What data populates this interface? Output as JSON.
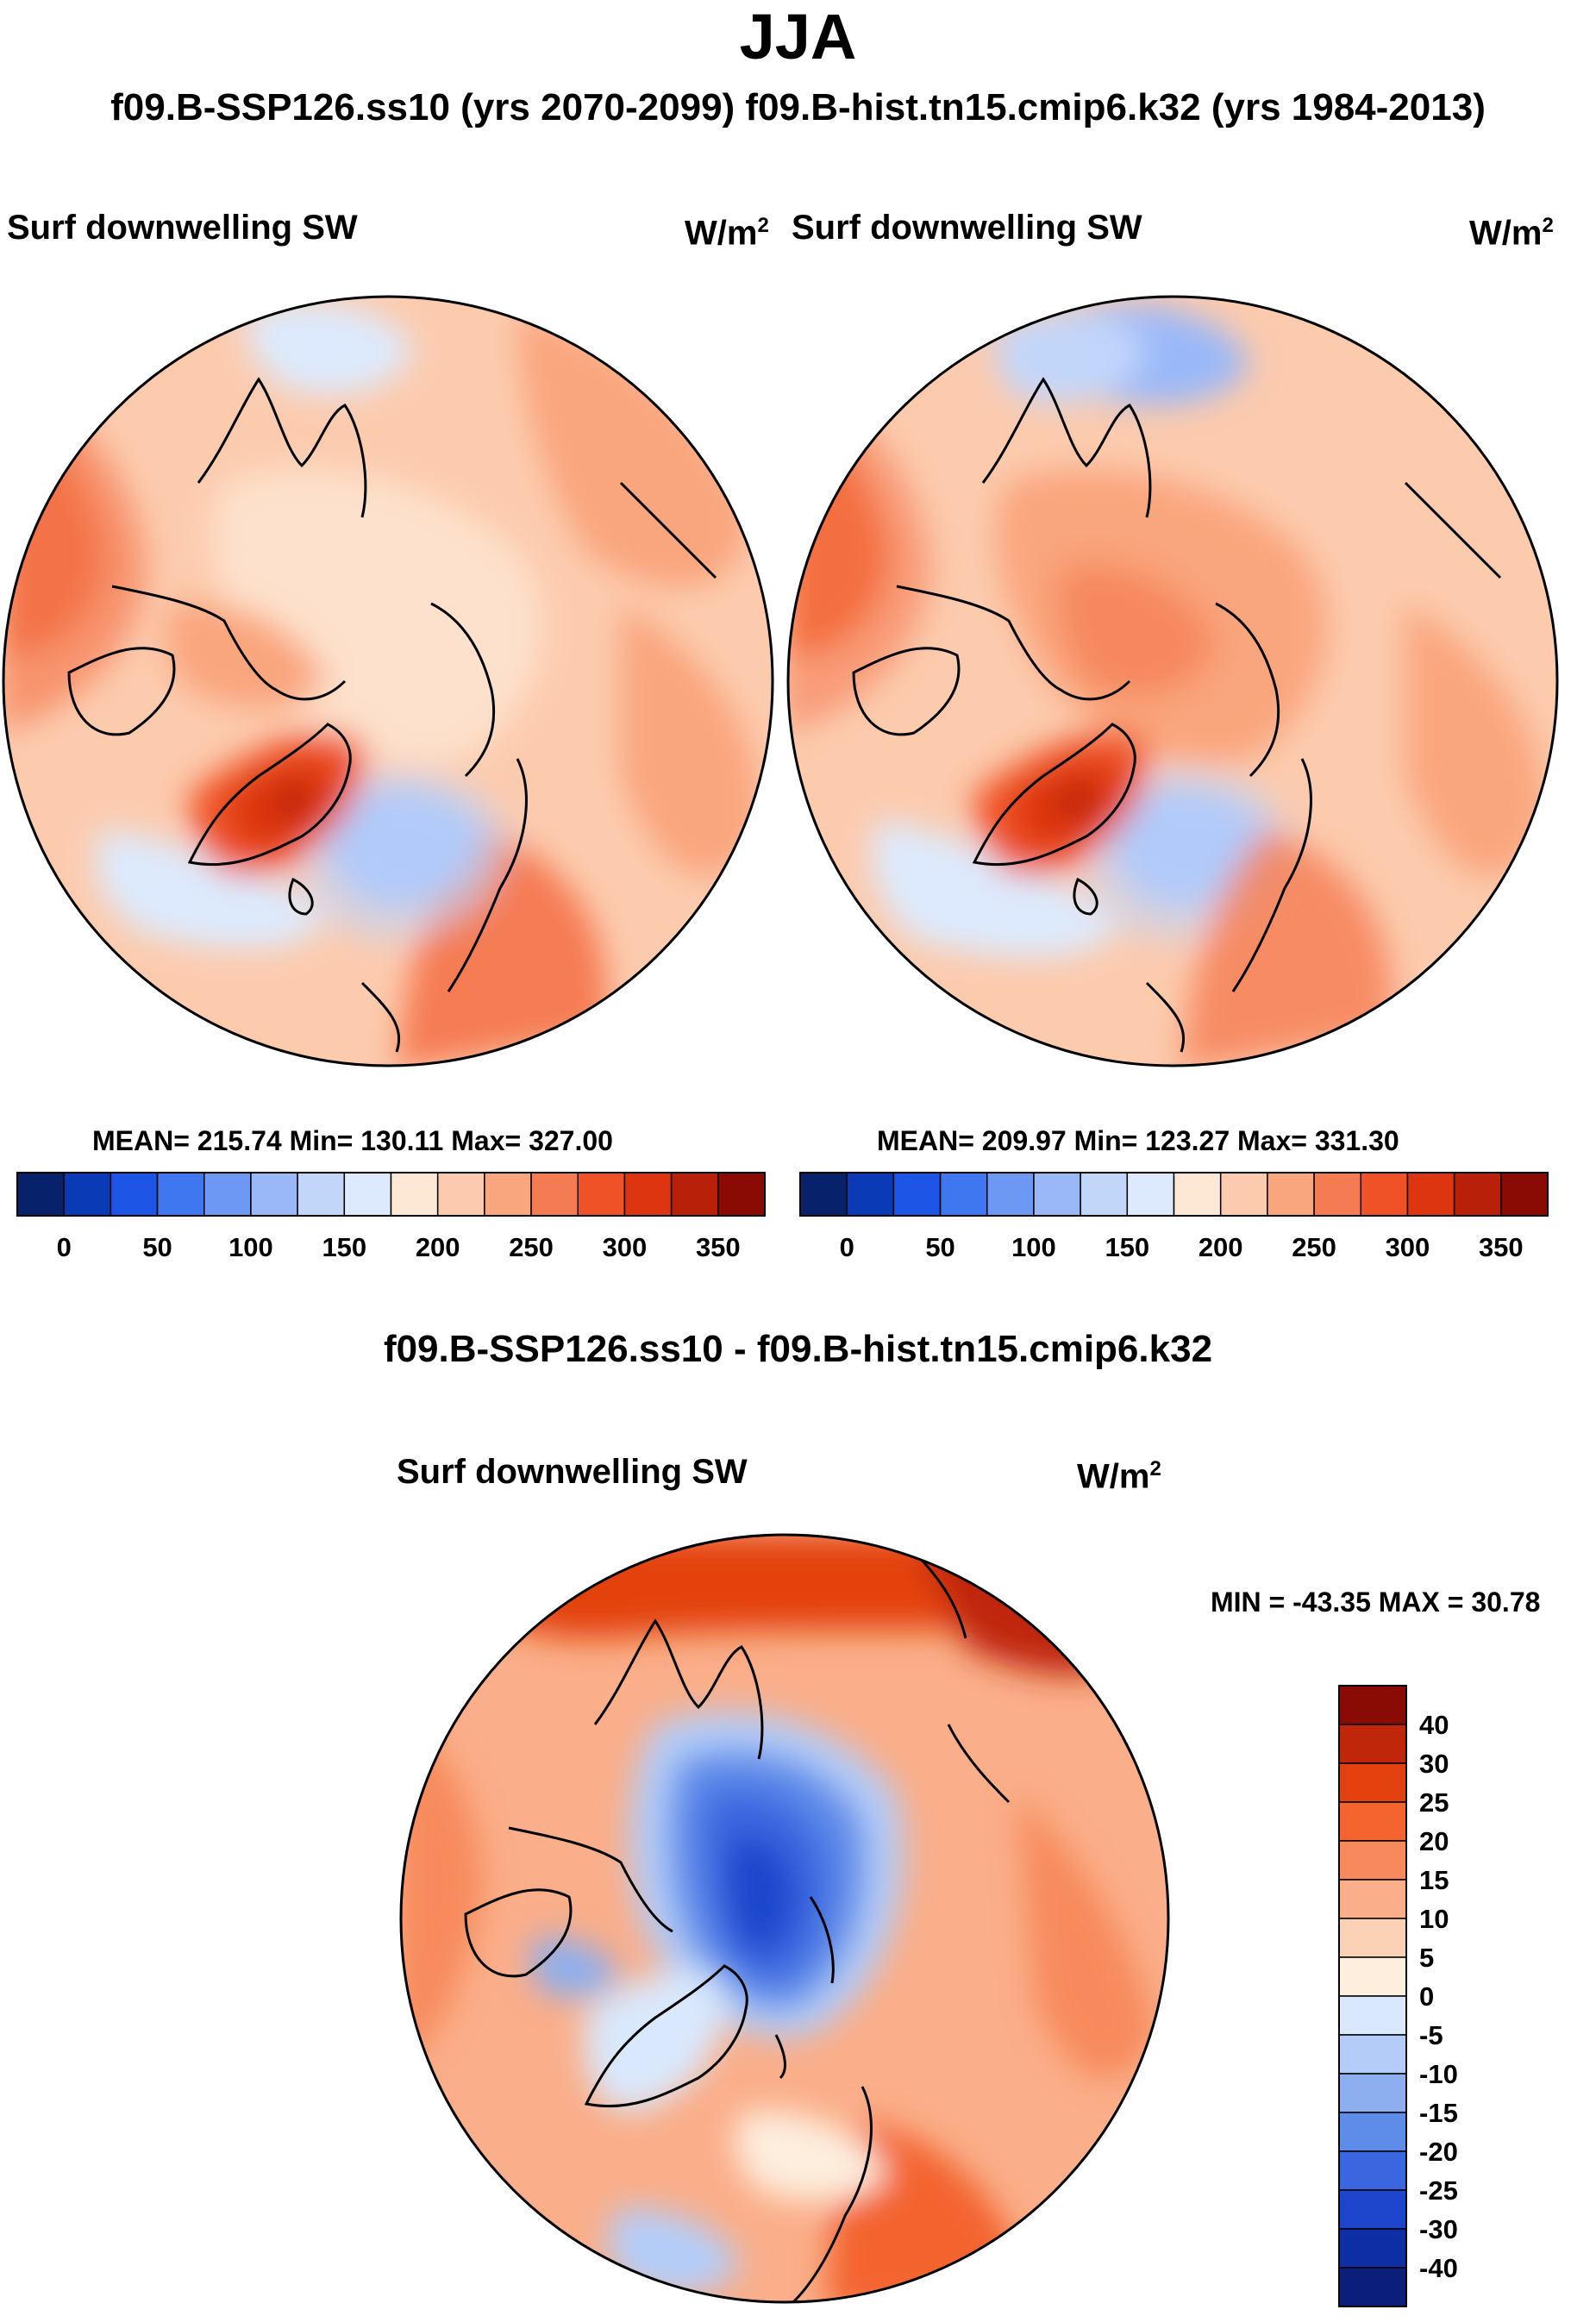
{
  "title": "JJA",
  "subtitle": "f09.B-SSP126.ss10 (yrs 2070-2099)  f09.B-hist.tn15.cmip6.k32 (yrs 1984-2013)",
  "panels": [
    {
      "label": "Surf downwelling SW",
      "units_base": "W/m",
      "units_exp": "2",
      "stats": "MEAN= 215.74  Min= 130.11  Max= 327.00"
    },
    {
      "label": "Surf downwelling SW",
      "units_base": "W/m",
      "units_exp": "2",
      "stats": "MEAN= 209.97  Min= 123.27  Max= 331.30"
    }
  ],
  "diff": {
    "title": "f09.B-SSP126.ss10 - f09.B-hist.tn15.cmip6.k32",
    "label": "Surf downwelling SW",
    "units_base": "W/m",
    "units_exp": "2",
    "stats": "MIN = -43.35 MAX =  30.78"
  },
  "chart_data": [
    {
      "type": "heatmap",
      "title": "Surf downwelling SW",
      "projection": "north polar stereographic",
      "units": "W/m2",
      "stats": {
        "mean": 215.74,
        "min": 130.11,
        "max": 327.0
      },
      "colorbar": {
        "orientation": "horizontal",
        "tick_labels": [
          "0",
          "50",
          "100",
          "150",
          "200",
          "250",
          "300",
          "350"
        ],
        "tick_values": [
          0,
          50,
          100,
          150,
          200,
          250,
          300,
          350
        ],
        "range": [
          -25,
          375
        ],
        "colors": [
          "#08216b",
          "#0a3ab5",
          "#1d55e6",
          "#3f77f0",
          "#6d98f4",
          "#9ab8f8",
          "#c2d6fa",
          "#ddeafd",
          "#fde8d6",
          "#fccbae",
          "#f9a57d",
          "#f57c52",
          "#ef5226",
          "#dc3510",
          "#b9200a",
          "#8a0b04"
        ]
      }
    },
    {
      "type": "heatmap",
      "title": "Surf downwelling SW",
      "projection": "north polar stereographic",
      "units": "W/m2",
      "stats": {
        "mean": 209.97,
        "min": 123.27,
        "max": 331.3
      },
      "colorbar": {
        "orientation": "horizontal",
        "tick_labels": [
          "0",
          "50",
          "100",
          "150",
          "200",
          "250",
          "300",
          "350"
        ],
        "tick_values": [
          0,
          50,
          100,
          150,
          200,
          250,
          300,
          350
        ],
        "range": [
          -25,
          375
        ],
        "colors": [
          "#08216b",
          "#0a3ab5",
          "#1d55e6",
          "#3f77f0",
          "#6d98f4",
          "#9ab8f8",
          "#c2d6fa",
          "#ddeafd",
          "#fde8d6",
          "#fccbae",
          "#f9a57d",
          "#f57c52",
          "#ef5226",
          "#dc3510",
          "#b9200a",
          "#8a0b04"
        ]
      }
    },
    {
      "type": "heatmap",
      "title": "Surf downwelling SW",
      "projection": "north polar stereographic",
      "units": "W/m2",
      "stats": {
        "min": -43.35,
        "max": 30.78
      },
      "colorbar": {
        "orientation": "vertical",
        "tick_labels": [
          "40",
          "30",
          "25",
          "20",
          "15",
          "10",
          "5",
          "0",
          "-5",
          "-10",
          "-15",
          "-20",
          "-25",
          "-30",
          "-40"
        ],
        "colors": [
          "#8a0b04",
          "#c02609",
          "#e3420f",
          "#f3642e",
          "#f78a5c",
          "#faae89",
          "#fcd2b7",
          "#fdeede",
          "#d9e8fc",
          "#b4cdf8",
          "#8dafef",
          "#5e8ce9",
          "#3a67e0",
          "#1e46cc",
          "#0e2ea5",
          "#0b1e7a"
        ]
      }
    }
  ]
}
